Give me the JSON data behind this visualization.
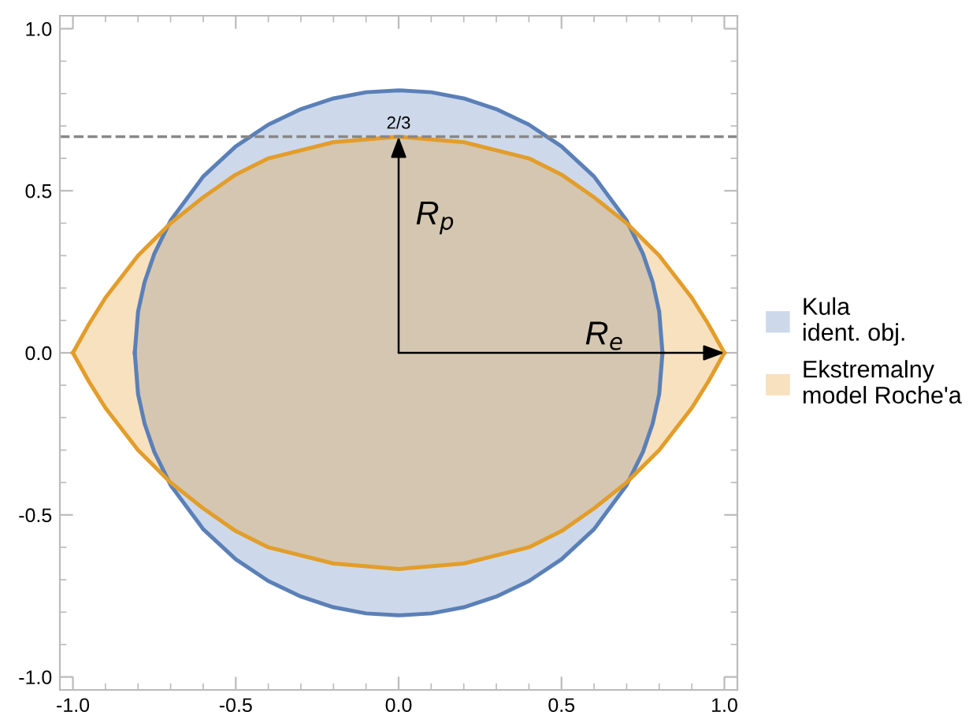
{
  "chart_data": {
    "type": "area",
    "series": [
      {
        "name": "Kula\nident. obj.",
        "color": "#5b80b8",
        "x": [
          -0.81,
          -0.8,
          -0.78,
          -0.75,
          -0.7,
          -0.6,
          -0.5,
          -0.4,
          -0.3,
          -0.2,
          -0.1,
          0,
          0.1,
          0.2,
          0.3,
          0.4,
          0.5,
          0.6,
          0.7,
          0.75,
          0.78,
          0.8,
          0.81
        ],
        "values": [
          0,
          0.127,
          0.218,
          0.306,
          0.408,
          0.544,
          0.637,
          0.704,
          0.752,
          0.785,
          0.804,
          0.81,
          0.804,
          0.785,
          0.752,
          0.704,
          0.637,
          0.544,
          0.408,
          0.306,
          0.218,
          0.127,
          0
        ]
      },
      {
        "color": "#5b80b8",
        "x": [
          -0.81,
          -0.8,
          -0.78,
          -0.75,
          -0.7,
          -0.6,
          -0.5,
          -0.4,
          -0.3,
          -0.2,
          -0.1,
          0,
          0.1,
          0.2,
          0.3,
          0.4,
          0.5,
          0.6,
          0.7,
          0.75,
          0.78,
          0.8,
          0.81
        ],
        "values": [
          0,
          -0.127,
          -0.218,
          -0.306,
          -0.408,
          -0.544,
          -0.637,
          -0.704,
          -0.752,
          -0.785,
          -0.804,
          -0.81,
          -0.804,
          -0.785,
          -0.752,
          -0.704,
          -0.637,
          -0.544,
          -0.408,
          -0.306,
          -0.218,
          -0.127,
          0
        ]
      },
      {
        "name": "Ekstremalny\nmodel Roche'a",
        "color": "#e39d2a",
        "x": [
          -1,
          -0.95,
          -0.9,
          -0.8,
          -0.7,
          -0.6,
          -0.5,
          -0.4,
          -0.2,
          0,
          0.2,
          0.4,
          0.5,
          0.6,
          0.7,
          0.8,
          0.9,
          0.95,
          1
        ],
        "values": [
          0,
          0.09,
          0.17,
          0.3,
          0.4,
          0.48,
          0.55,
          0.6,
          0.65,
          0.667,
          0.65,
          0.6,
          0.55,
          0.48,
          0.4,
          0.3,
          0.17,
          0.09,
          0
        ]
      },
      {
        "color": "#e39d2a",
        "x": [
          -1,
          -0.95,
          -0.9,
          -0.8,
          -0.7,
          -0.6,
          -0.5,
          -0.4,
          -0.2,
          0,
          0.2,
          0.4,
          0.5,
          0.6,
          0.7,
          0.8,
          0.9,
          0.95,
          1
        ],
        "values": [
          0,
          -0.09,
          -0.17,
          -0.3,
          -0.4,
          -0.48,
          -0.55,
          -0.6,
          -0.65,
          -0.667,
          -0.65,
          -0.6,
          -0.55,
          -0.48,
          -0.4,
          -0.3,
          -0.17,
          -0.09,
          0
        ]
      }
    ],
    "xlim": [
      -1.04,
      1.04
    ],
    "ylim": [
      -1.04,
      1.04
    ],
    "xticks": [
      {
        "value": -1,
        "label": "-1.0"
      },
      {
        "value": -0.5,
        "label": "-0.5"
      },
      {
        "value": 0,
        "label": "0.0"
      },
      {
        "value": 0.5,
        "label": "0.5"
      },
      {
        "value": 1,
        "label": "1.0"
      }
    ],
    "yticks": [
      {
        "value": -1,
        "label": "-1.0"
      },
      {
        "value": -0.5,
        "label": "-0.5"
      },
      {
        "value": 0,
        "label": "0.0"
      },
      {
        "value": 0.5,
        "label": "0.5"
      },
      {
        "value": 1,
        "label": "1.0"
      }
    ],
    "ref_lines": [
      {
        "axis": "y",
        "value": 0.667,
        "color": "#888888",
        "line_style": "dashed"
      }
    ],
    "annotations": [
      {
        "text": "2/3",
        "x": 0,
        "y": 0.667
      },
      "R$_{p}$",
      "R$_{e}$"
    ],
    "legend": "right",
    "grid": false
  }
}
